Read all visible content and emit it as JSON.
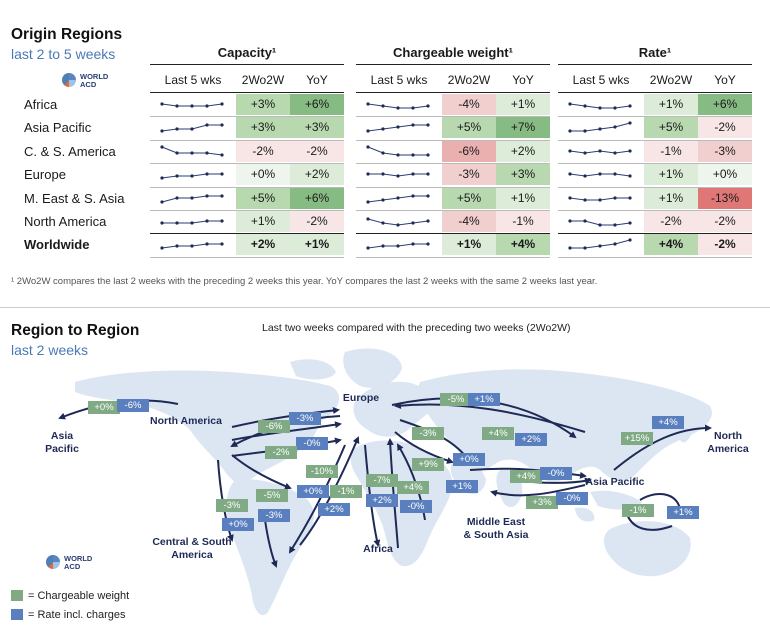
{
  "header": {
    "title": "Origin Regions",
    "subtitle": "last 2 to 5 weeks"
  },
  "logo": {
    "line1": "WORLD",
    "line2": "ACD"
  },
  "groups": [
    {
      "label": "Capacity¹",
      "columns": [
        "Last 5 wks",
        "2Wo2W",
        "YoY"
      ]
    },
    {
      "label": "Chargeable weight¹",
      "columns": [
        "Last 5 wks",
        "2Wo2W",
        "YoY"
      ]
    },
    {
      "label": "Rate¹",
      "columns": [
        "Last 5 wks",
        "2Wo2W",
        "YoY"
      ]
    }
  ],
  "rows": [
    {
      "label": "Africa",
      "bold": false,
      "values": [
        "+3%",
        "+6%",
        "-4%",
        "+1%",
        "+1%",
        "+6%"
      ],
      "spark": [
        [
          3,
          2,
          2,
          2,
          3
        ],
        [
          3,
          2,
          1,
          1,
          2
        ],
        [
          3,
          2,
          1,
          1,
          2
        ]
      ]
    },
    {
      "label": "Asia Pacific",
      "bold": false,
      "values": [
        "+3%",
        "+3%",
        "+5%",
        "+7%",
        "+5%",
        "-2%"
      ],
      "spark": [
        [
          1,
          2,
          2,
          4,
          4
        ],
        [
          1,
          2,
          3,
          4,
          4
        ],
        [
          1,
          1,
          2,
          3,
          5
        ]
      ]
    },
    {
      "label": "C. & S. America",
      "bold": false,
      "values": [
        "-2%",
        "-2%",
        "-6%",
        "+2%",
        "-1%",
        "-3%"
      ],
      "spark": [
        [
          5,
          2,
          2,
          2,
          1
        ],
        [
          5,
          2,
          1,
          1,
          1
        ],
        [
          3,
          2,
          3,
          2,
          3
        ]
      ]
    },
    {
      "label": "Europe",
      "bold": false,
      "values": [
        "+0%",
        "+2%",
        "-3%",
        "+3%",
        "+1%",
        "+0%"
      ],
      "spark": [
        [
          1,
          2,
          2,
          3,
          3
        ],
        [
          3,
          3,
          2,
          3,
          3
        ],
        [
          3,
          2,
          3,
          3,
          2
        ]
      ]
    },
    {
      "label": "M. East & S. Asia",
      "bold": false,
      "values": [
        "+5%",
        "+6%",
        "+5%",
        "+1%",
        "+1%",
        "-13%"
      ],
      "spark": [
        [
          1,
          3,
          3,
          4,
          4
        ],
        [
          1,
          2,
          3,
          4,
          4
        ],
        [
          3,
          2,
          2,
          3,
          3
        ]
      ]
    },
    {
      "label": "North America",
      "bold": false,
      "values": [
        "+1%",
        "-2%",
        "-4%",
        "-1%",
        "-2%",
        "-2%"
      ],
      "spark": [
        [
          2,
          2,
          2,
          3,
          3
        ],
        [
          4,
          2,
          1,
          2,
          3
        ],
        [
          3,
          3,
          1,
          1,
          2
        ]
      ]
    },
    {
      "label": "Worldwide",
      "bold": true,
      "values": [
        "+2%",
        "+1%",
        "+1%",
        "+4%",
        "+4%",
        "-2%"
      ],
      "spark": [
        [
          1,
          2,
          2,
          3,
          3
        ],
        [
          1,
          2,
          2,
          3,
          3
        ],
        [
          1,
          1,
          2,
          3,
          5
        ]
      ]
    }
  ],
  "footnote": "¹ 2Wo2W compares the last 2 weeks with the preceding 2 weeks this year. YoY compares the last 2 weeks with the same 2 weeks last year.",
  "map_section": {
    "title": "Region to Region",
    "subtitle": "last 2 weeks",
    "caption": "Last two weeks compared with the preceding two weeks (2Wo2W)"
  },
  "map_labels": [
    {
      "key": "asia_pacific_w",
      "l1": "Asia",
      "l2": "Pacific"
    },
    {
      "key": "north_america",
      "l1": "North America",
      "l2": ""
    },
    {
      "key": "europe",
      "l1": "Europe",
      "l2": ""
    },
    {
      "key": "central_south_america",
      "l1": "Central & South",
      "l2": "America"
    },
    {
      "key": "africa",
      "l1": "Africa",
      "l2": ""
    },
    {
      "key": "middle_east",
      "l1": "Middle East",
      "l2": "& South Asia"
    },
    {
      "key": "asia_pacific_e",
      "l1": "Asia Pacific",
      "l2": ""
    },
    {
      "key": "north_america_e",
      "l1": "North",
      "l2": "America"
    }
  ],
  "map_badges": [
    {
      "t": "+0%",
      "k": "g"
    },
    {
      "t": "-6%",
      "k": "b"
    },
    {
      "t": "-3%",
      "k": "b"
    },
    {
      "t": "-6%",
      "k": "g"
    },
    {
      "t": "-0%",
      "k": "b"
    },
    {
      "t": "-2%",
      "k": "g"
    },
    {
      "t": "-5%",
      "k": "g"
    },
    {
      "t": "+1%",
      "k": "b"
    },
    {
      "t": "-3%",
      "k": "g"
    },
    {
      "t": "+0%",
      "k": "b"
    },
    {
      "t": "+4%",
      "k": "g"
    },
    {
      "t": "+2%",
      "k": "b"
    },
    {
      "t": "+9%",
      "k": "g"
    },
    {
      "t": "+1%",
      "k": "b"
    },
    {
      "t": "-10%",
      "k": "g"
    },
    {
      "t": "+0%",
      "k": "b"
    },
    {
      "t": "-1%",
      "k": "g"
    },
    {
      "t": "+2%",
      "k": "b"
    },
    {
      "t": "-7%",
      "k": "g"
    },
    {
      "t": "+2%",
      "k": "b"
    },
    {
      "t": "+4%",
      "k": "g"
    },
    {
      "t": "-0%",
      "k": "b"
    },
    {
      "t": "+4%",
      "k": "g"
    },
    {
      "t": "-0%",
      "k": "b"
    },
    {
      "t": "+3%",
      "k": "g"
    },
    {
      "t": "-0%",
      "k": "b"
    },
    {
      "t": "+15%",
      "k": "g"
    },
    {
      "t": "+4%",
      "k": "b"
    },
    {
      "t": "-1%",
      "k": "g"
    },
    {
      "t": "+1%",
      "k": "b"
    },
    {
      "t": "-3%",
      "k": "g"
    },
    {
      "t": "+0%",
      "k": "b"
    },
    {
      "t": "-5%",
      "k": "g"
    },
    {
      "t": "-3%",
      "k": "b"
    },
    {
      "t": "+0%",
      "k": "b"
    }
  ],
  "legend": [
    {
      "label": "= Chargeable weight",
      "color": "#7faa83"
    },
    {
      "label": "= Rate incl. charges",
      "color": "#5a7fbf"
    }
  ],
  "colors": {
    "green_bg": "#7faa83",
    "blue_bg": "#5a7fbf",
    "arrow": "#1e2a55",
    "land": "#dbe6f2"
  },
  "chart_data": {
    "type": "table",
    "title": "Origin Regions",
    "subtitle": "last 2 to 5 weeks",
    "metrics": [
      "Capacity",
      "Chargeable weight",
      "Rate"
    ],
    "columns": [
      "Last 5 wks",
      "2Wo2W",
      "YoY"
    ],
    "regions": [
      "Africa",
      "Asia Pacific",
      "C. & S. America",
      "Europe",
      "M. East & S. Asia",
      "North America",
      "Worldwide"
    ],
    "capacity_2wo2w": [
      "+3%",
      "+3%",
      "-2%",
      "+0%",
      "+5%",
      "+1%",
      "+2%"
    ],
    "capacity_yoy": [
      "+6%",
      "+3%",
      "-2%",
      "+2%",
      "+6%",
      "-2%",
      "+1%"
    ],
    "chargeable_weight_2wo2w": [
      "-4%",
      "+5%",
      "-6%",
      "-3%",
      "+5%",
      "-4%",
      "+1%"
    ],
    "chargeable_weight_yoy": [
      "+1%",
      "+7%",
      "+2%",
      "+3%",
      "+1%",
      "-1%",
      "+4%"
    ],
    "rate_2wo2w": [
      "+1%",
      "+5%",
      "-1%",
      "+1%",
      "+1%",
      "-2%",
      "+4%"
    ],
    "rate_yoy": [
      "+6%",
      "-2%",
      "-3%",
      "+0%",
      "-13%",
      "-2%",
      "-2%"
    ]
  }
}
